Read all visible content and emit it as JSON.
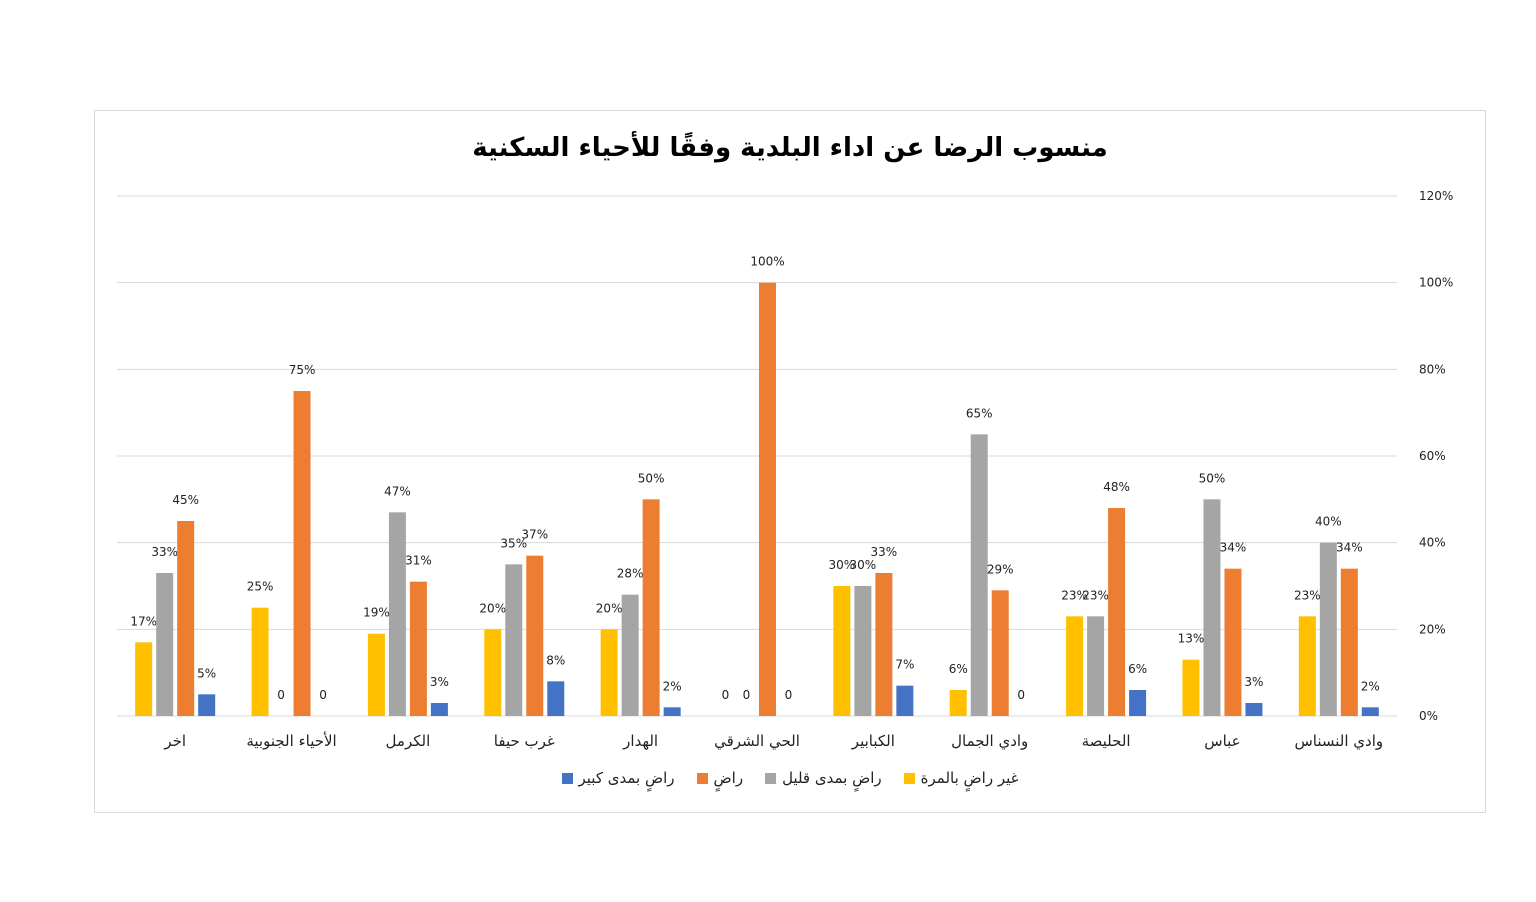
{
  "chart_data": {
    "type": "bar",
    "title": "منسوب الرضا عن اداء البلدية وفقًا للأحياء السكنية",
    "categories": [
      "وادي النسناس",
      "عباس",
      "الحليصة",
      "وادي الجمال",
      "الكبابير",
      "الحي الشرقي",
      "الهدار",
      "غرب حيفا",
      "الكرمل",
      "الأحياء الجنوبية",
      "اخر"
    ],
    "series": [
      {
        "name": "غير راضٍ بالمرة",
        "color": "#FFC000",
        "values": [
          23,
          13,
          23,
          6,
          30,
          0,
          20,
          20,
          19,
          25,
          17
        ],
        "labels": [
          "23%",
          "13%",
          "23%",
          "6%",
          "30%",
          "0",
          "20%",
          "20%",
          "19%",
          "25%",
          "17%"
        ]
      },
      {
        "name": "راضٍ بمدى قليل",
        "color": "#A5A5A5",
        "values": [
          40,
          50,
          23,
          65,
          30,
          0,
          28,
          35,
          47,
          0,
          33
        ],
        "labels": [
          "40%",
          "50%",
          "23%",
          "65%",
          "30%",
          "0",
          "28%",
          "35%",
          "47%",
          "0",
          "33%"
        ]
      },
      {
        "name": "راضٍ",
        "color": "#ED7D31",
        "values": [
          34,
          34,
          48,
          29,
          33,
          100,
          50,
          37,
          31,
          75,
          45
        ],
        "labels": [
          "34%",
          "34%",
          "48%",
          "29%",
          "33%",
          "100%",
          "50%",
          "37%",
          "31%",
          "75%",
          "45%"
        ]
      },
      {
        "name": "راضٍ بمدى كبير",
        "color": "#4472C4",
        "values": [
          2,
          3,
          6,
          0,
          7,
          0,
          2,
          8,
          3,
          0,
          5
        ],
        "labels": [
          "2%",
          "3%",
          "6%",
          "0",
          "7%",
          "0",
          "2%",
          "8%",
          "3%",
          "0",
          "5%"
        ]
      }
    ],
    "y_ticks": [
      "0%",
      "20%",
      "40%",
      "60%",
      "80%",
      "100%",
      "120%"
    ],
    "ylim": [
      0,
      120
    ],
    "grid": true,
    "y_axis_side": "right",
    "legend_position": "bottom",
    "legend_order": [
      "راضٍ بمدى كبير",
      "راضٍ",
      "راضٍ بمدى قليل",
      "غير راضٍ بالمرة"
    ]
  }
}
